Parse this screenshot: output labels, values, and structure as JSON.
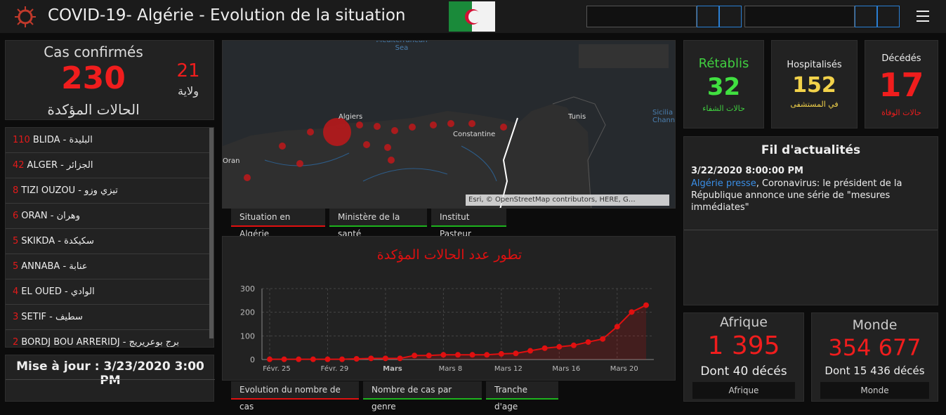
{
  "header": {
    "title": "COVID-19- Algérie - Evolution de la situation"
  },
  "confirmed": {
    "label": "Cas confirmés",
    "value": "230",
    "wilayas": "21",
    "wilayas_label": "ولاية",
    "label_ar": "الحالات المؤكدة"
  },
  "provinces": [
    {
      "count": "110",
      "name": "BLIDA - البليدة"
    },
    {
      "count": "42",
      "name": "ALGER - الجزائر"
    },
    {
      "count": "8",
      "name": "TIZI OUZOU - تيزي وزو"
    },
    {
      "count": "6",
      "name": "ORAN - وهران"
    },
    {
      "count": "5",
      "name": "SKIKDA - سكيكدة"
    },
    {
      "count": "5",
      "name": "ANNABA - عنابة"
    },
    {
      "count": "4",
      "name": "EL OUED - الوادي"
    },
    {
      "count": "3",
      "name": "SETIF - سطيف"
    },
    {
      "count": "2",
      "name": "BORDJ BOU ARRERIDJ - برج بوعريريج"
    }
  ],
  "update": "Mise à jour : 3/23/2020 3:00 PM",
  "map": {
    "labels": [
      "Mediterranean Sea",
      "Algiers",
      "Constantine",
      "Tunis",
      "Oran",
      "Sicilia Chann"
    ],
    "attribution": "Esri, © OpenStreetMap contributors, HERE, G…"
  },
  "map_tabs": [
    "Situation en Algérie",
    "Ministère de la santé",
    "Institut Pasteur"
  ],
  "chart_data": {
    "type": "line",
    "title": "تطور عدد الحالات المؤكدة",
    "categories": [
      "Févr. 25",
      null,
      null,
      null,
      "Févr. 29",
      null,
      null,
      null,
      "Mars",
      null,
      null,
      null,
      "Mars 8",
      null,
      null,
      null,
      "Mars 12",
      null,
      null,
      null,
      "Mars 16",
      null,
      null,
      null,
      "Mars 20",
      null,
      null
    ],
    "series": [
      {
        "name": "Cas confirmés",
        "color": "#e01010",
        "values": [
          1,
          1,
          1,
          1,
          1,
          1,
          3,
          5,
          5,
          5,
          17,
          17,
          20,
          20,
          20,
          20,
          24,
          26,
          37,
          48,
          54,
          60,
          74,
          87,
          139,
          201,
          230
        ]
      }
    ],
    "ylim": [
      0,
      300
    ],
    "yticks": [
      0,
      100,
      200,
      300
    ],
    "grid": true
  },
  "chart_tabs": [
    "Evolution du nombre de cas",
    "Nombre de cas par genre",
    "Tranche d'age"
  ],
  "recovered": {
    "label": "Rétablis",
    "value": "32",
    "label_ar": "حالات الشفاء"
  },
  "hospitalized": {
    "label": "Hospitalisés",
    "value": "152",
    "label_ar": "في المستشفى"
  },
  "deaths": {
    "label": "Décédés",
    "value": "17",
    "label_ar": "حالات الوفاة"
  },
  "news": {
    "title": "Fil d'actualités",
    "date": "3/22/2020 8:00:00 PM",
    "source": "Algérie presse",
    "text": ", Coronavirus: le président de la République annonce une série de \"mesures immédiates\""
  },
  "africa": {
    "label": "Afrique",
    "value": "1 395",
    "deaths": "Dont 40 décés",
    "nav": "Afrique"
  },
  "world": {
    "label": "Monde",
    "value": "354 677",
    "deaths": "Dont 15 436 décés",
    "nav": "Monde"
  }
}
